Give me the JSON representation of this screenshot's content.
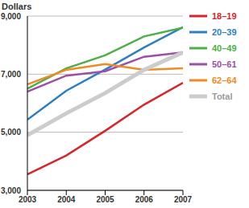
{
  "chart_data": {
    "type": "line",
    "y_label": "Dollars",
    "x": [
      2003,
      2004,
      2005,
      2006,
      2007
    ],
    "xlim": [
      2003,
      2007
    ],
    "xticks": [
      2003,
      2004,
      2005,
      2006,
      2007
    ],
    "ylim": [
      3000,
      9000
    ],
    "yticks": [
      {
        "value": 3000,
        "label": "3,000"
      },
      {
        "value": 5000,
        "label": "5,000"
      },
      {
        "value": 7000,
        "label": "7,000"
      },
      {
        "value": 9000,
        "label": "9,000"
      }
    ],
    "grid": true,
    "legend": "right",
    "series": [
      {
        "name": "18–19",
        "color": "#d7262b",
        "values": [
          3550,
          4200,
          5050,
          5950,
          6700
        ]
      },
      {
        "name": "20–39",
        "color": "#2e7fc1",
        "values": [
          5430,
          6430,
          7160,
          7920,
          8620
        ]
      },
      {
        "name": "40–49",
        "color": "#4daf4a",
        "values": [
          6500,
          7200,
          7650,
          8300,
          8600
        ]
      },
      {
        "name": "50–61",
        "color": "#9b4fa8",
        "values": [
          6400,
          6950,
          7100,
          7600,
          7750
        ]
      },
      {
        "name": "62–64",
        "color": "#f08a24",
        "values": [
          6650,
          7150,
          7350,
          7150,
          7200
        ]
      },
      {
        "name": "Total",
        "color": "#cccccc",
        "values": [
          4900,
          5650,
          6350,
          7150,
          7750
        ]
      }
    ]
  }
}
